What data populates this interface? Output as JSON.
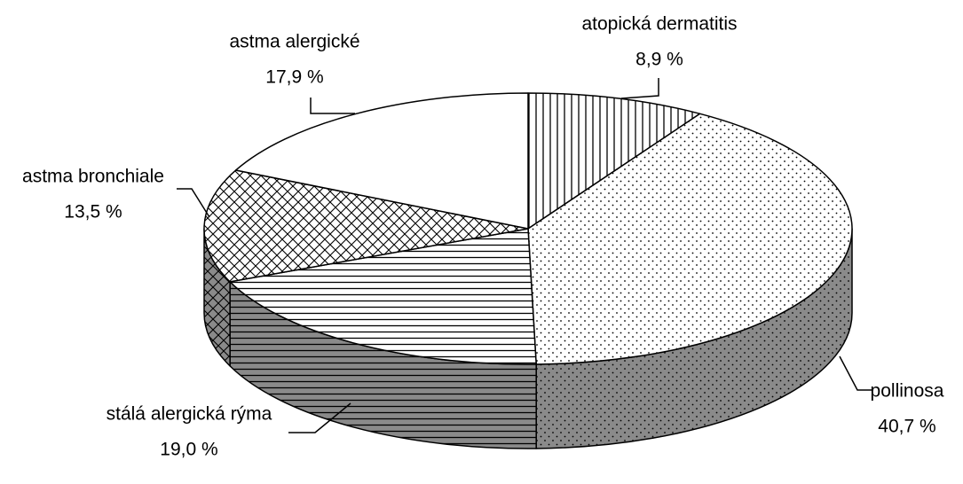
{
  "chart_data": {
    "type": "pie",
    "categories": [
      "atopická dermatitis",
      "pollinosa",
      "stálá alergická  rýma",
      "astma bronchiale",
      "astma alergické"
    ],
    "values": [
      8.9,
      40.7,
      19.0,
      13.5,
      17.9
    ],
    "value_labels": [
      "8,9 %",
      "40,7 %",
      "19,0 %",
      "13,5 %",
      "17,9 %"
    ]
  }
}
